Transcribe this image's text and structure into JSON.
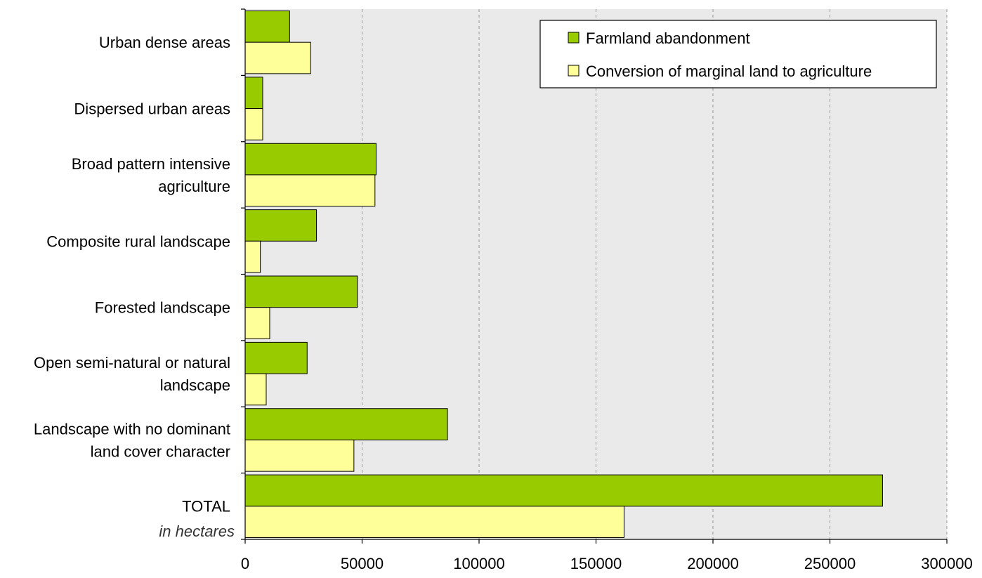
{
  "chart_data": {
    "type": "bar",
    "orientation": "horizontal",
    "categories": [
      [
        "Urban dense areas"
      ],
      [
        "Dispersed urban areas"
      ],
      [
        "Broad pattern intensive",
        "agriculture"
      ],
      [
        "Composite rural landscape"
      ],
      [
        "Forested landscape"
      ],
      [
        "Open semi-natural or natural",
        "landscape"
      ],
      [
        "Landscape with no dominant",
        "land cover character"
      ],
      [
        "TOTAL"
      ]
    ],
    "unit_note": "in hectares",
    "series": [
      {
        "name": "Farmland abandonment",
        "color": "#99cc00",
        "values": [
          19000,
          7500,
          56000,
          30500,
          48000,
          26500,
          86500,
          272500
        ]
      },
      {
        "name": "Conversion of marginal land to agriculture",
        "color": "#ffff99",
        "values": [
          28000,
          7500,
          55500,
          6500,
          10500,
          9000,
          46500,
          162000
        ]
      }
    ],
    "xlim": [
      0,
      300000
    ],
    "xticks": [
      0,
      50000,
      100000,
      150000,
      200000,
      250000,
      300000
    ],
    "xtick_labels": [
      "0",
      "50000",
      "100000",
      "150000",
      "200000",
      "250000",
      "300000"
    ],
    "grid": "vertical dashed",
    "plot_background": "#eaeaea",
    "legend_position": "top-right"
  }
}
